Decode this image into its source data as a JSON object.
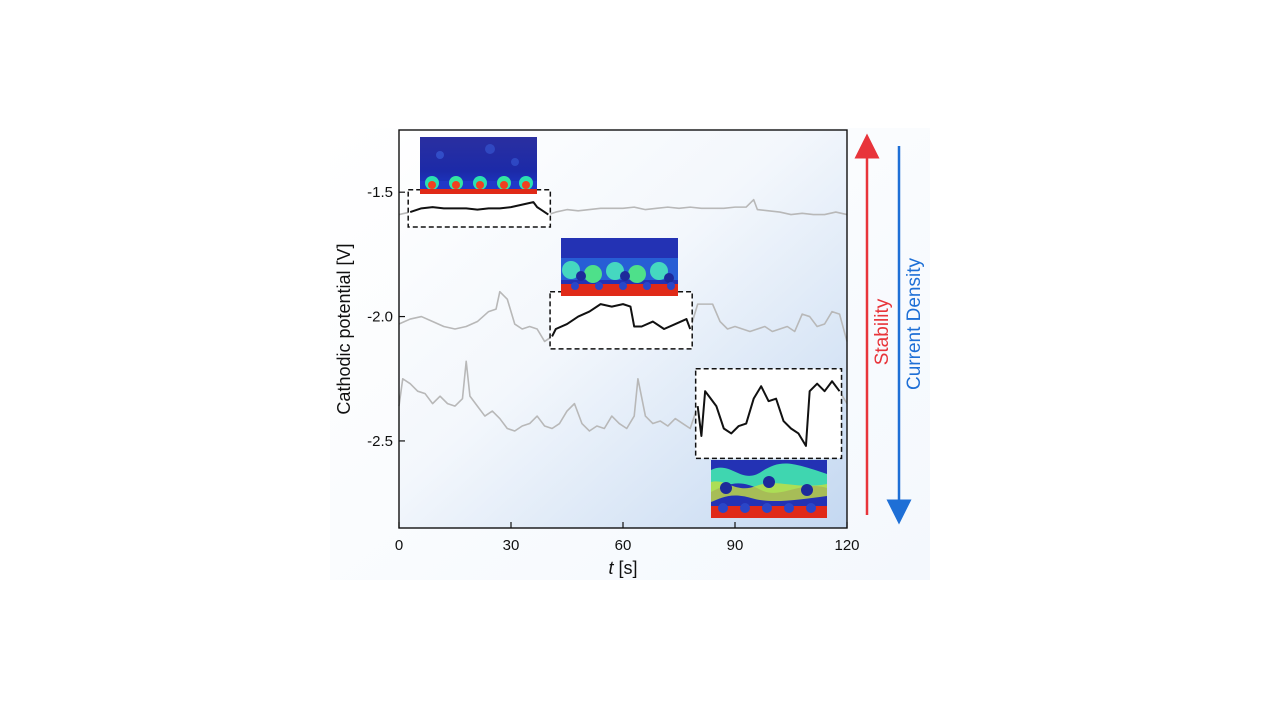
{
  "chart_data": {
    "type": "line",
    "title": "",
    "xlabel_italic": "t",
    "xlabel_unit": " [s]",
    "ylabel": "Cathodic potential [V]",
    "xlim": [
      0,
      120
    ],
    "ylim": [
      -2.85,
      -1.25
    ],
    "xticks": [
      0,
      30,
      60,
      90,
      120
    ],
    "xtick_labels": [
      "0",
      "30",
      "60",
      "90",
      "120"
    ],
    "yticks": [
      -1.5,
      -2.0,
      -2.5
    ],
    "ytick_labels": [
      "-1.5",
      "-2.0",
      "-2.5"
    ],
    "grid": false,
    "series": [
      {
        "highlight_range": [
          3,
          40
        ],
        "x": [
          0,
          3,
          6,
          9,
          12,
          15,
          18,
          21,
          24,
          27,
          30,
          33,
          36,
          37,
          38,
          39,
          40,
          42,
          45,
          48,
          51,
          54,
          57,
          60,
          63,
          66,
          69,
          72,
          75,
          78,
          81,
          84,
          87,
          90,
          93,
          95,
          96,
          99,
          102,
          105,
          108,
          111,
          114,
          117,
          120
        ],
        "values": [
          -1.59,
          -1.58,
          -1.565,
          -1.56,
          -1.565,
          -1.565,
          -1.565,
          -1.57,
          -1.565,
          -1.565,
          -1.56,
          -1.55,
          -1.54,
          -1.56,
          -1.57,
          -1.58,
          -1.59,
          -1.58,
          -1.57,
          -1.575,
          -1.57,
          -1.565,
          -1.565,
          -1.565,
          -1.56,
          -1.57,
          -1.565,
          -1.56,
          -1.565,
          -1.56,
          -1.565,
          -1.565,
          -1.565,
          -1.56,
          -1.56,
          -1.53,
          -1.57,
          -1.575,
          -1.58,
          -1.59,
          -1.585,
          -1.59,
          -1.59,
          -1.58,
          -1.59
        ]
      },
      {
        "highlight_range": [
          41,
          78
        ],
        "x": [
          0,
          3,
          6,
          9,
          12,
          15,
          18,
          21,
          24,
          26,
          27,
          29,
          31,
          33,
          35,
          37,
          39,
          41,
          42,
          45,
          48,
          51,
          54,
          57,
          60,
          62,
          63,
          65,
          68,
          71,
          74,
          77,
          78,
          80,
          82,
          84,
          86,
          88,
          90,
          92,
          94,
          96,
          98,
          100,
          102,
          104,
          106,
          108,
          110,
          112,
          114,
          116,
          118,
          120
        ],
        "values": [
          -2.03,
          -2.01,
          -2.0,
          -2.02,
          -2.04,
          -2.05,
          -2.04,
          -2.02,
          -1.98,
          -1.97,
          -1.9,
          -1.93,
          -2.03,
          -2.05,
          -2.04,
          -2.05,
          -2.1,
          -2.08,
          -2.05,
          -2.03,
          -2.0,
          -1.98,
          -1.95,
          -1.96,
          -1.95,
          -1.96,
          -2.04,
          -2.04,
          -2.02,
          -2.05,
          -2.03,
          -2.01,
          -2.05,
          -1.95,
          -1.95,
          -1.95,
          -2.02,
          -2.05,
          -2.04,
          -2.05,
          -2.06,
          -2.05,
          -2.04,
          -2.06,
          -2.05,
          -2.04,
          -2.06,
          -1.99,
          -2.0,
          -2.04,
          -2.03,
          -1.98,
          -1.99,
          -2.1
        ]
      },
      {
        "highlight_range": [
          80,
          118
        ],
        "x": [
          0,
          1,
          3,
          5,
          7,
          9,
          11,
          13,
          15,
          17,
          18,
          19,
          21,
          23,
          25,
          27,
          29,
          31,
          33,
          35,
          37,
          39,
          41,
          43,
          45,
          47,
          49,
          51,
          53,
          55,
          57,
          59,
          61,
          63,
          64,
          66,
          68,
          70,
          72,
          74,
          76,
          78,
          80,
          81,
          82,
          83,
          85,
          87,
          89,
          91,
          93,
          95,
          97,
          99,
          101,
          103,
          105,
          107,
          109,
          110,
          112,
          114,
          116,
          118,
          120
        ],
        "values": [
          -2.36,
          -2.25,
          -2.27,
          -2.3,
          -2.31,
          -2.35,
          -2.32,
          -2.35,
          -2.36,
          -2.33,
          -2.18,
          -2.32,
          -2.36,
          -2.4,
          -2.38,
          -2.41,
          -2.45,
          -2.46,
          -2.44,
          -2.43,
          -2.4,
          -2.44,
          -2.45,
          -2.43,
          -2.38,
          -2.35,
          -2.43,
          -2.46,
          -2.44,
          -2.45,
          -2.4,
          -2.43,
          -2.45,
          -2.4,
          -2.25,
          -2.4,
          -2.43,
          -2.42,
          -2.44,
          -2.41,
          -2.43,
          -2.45,
          -2.36,
          -2.48,
          -2.3,
          -2.32,
          -2.36,
          -2.45,
          -2.47,
          -2.44,
          -2.43,
          -2.33,
          -2.28,
          -2.34,
          -2.33,
          -2.42,
          -2.45,
          -2.47,
          -2.52,
          -2.3,
          -2.27,
          -2.3,
          -2.26,
          -2.3,
          -2.35
        ]
      }
    ],
    "annotations": {
      "stability": "Stability",
      "current_density": "Current Density"
    },
    "colors": {
      "raw_trace": "#b8b8b8",
      "highlight_trace": "#111111",
      "stability_arrow": "#e8343a",
      "current_density_arrow": "#1e6fd6",
      "plot_bg_light": "#ffffff",
      "plot_bg_dark": "#c4d8f1"
    }
  }
}
